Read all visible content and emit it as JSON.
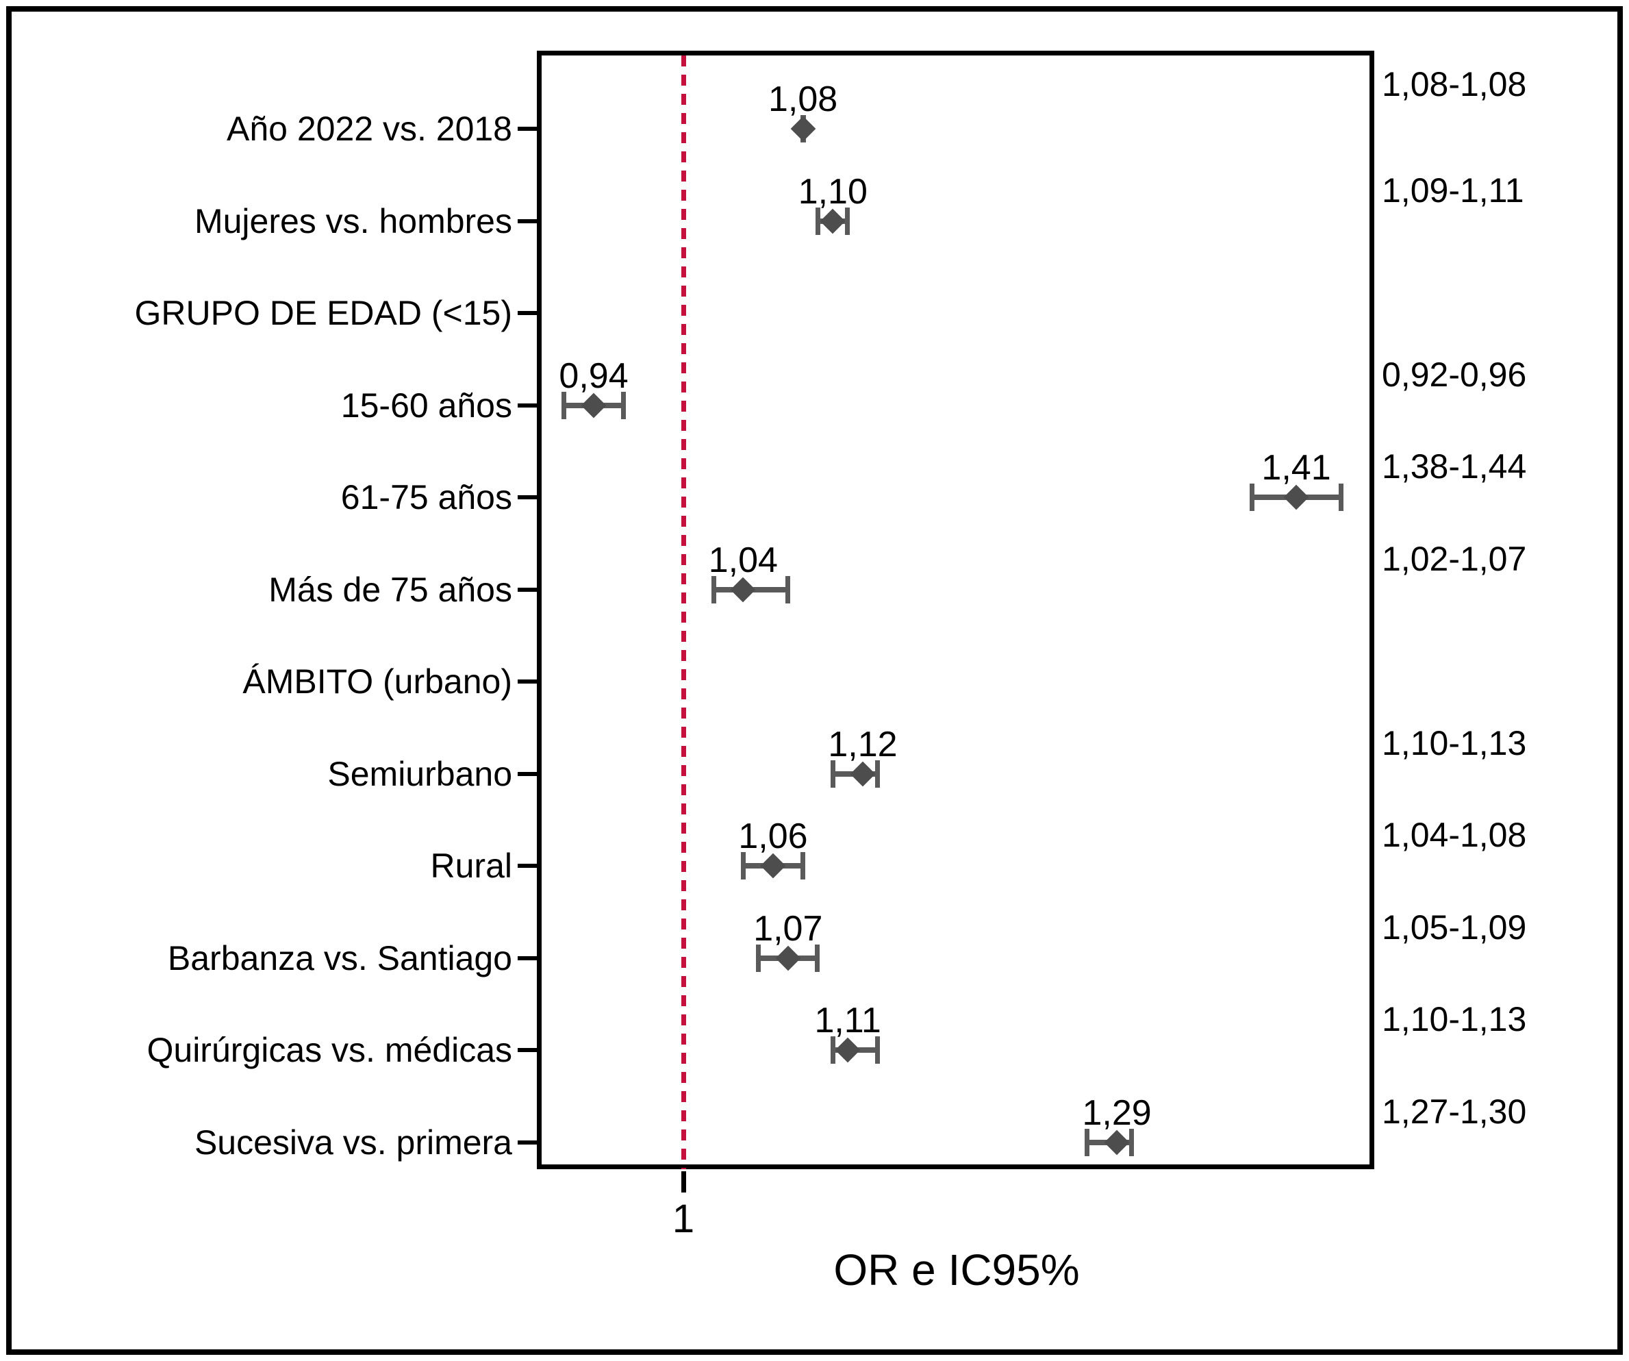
{
  "figure": {
    "background_color": "#ffffff",
    "border_color": "#000000"
  },
  "chart_data": {
    "type": "scatter",
    "subtype": "forest-plot",
    "title": "",
    "xlabel": "OR e IC95%",
    "ylabel": "",
    "xlim": [
      0.9,
      1.46
    ],
    "x_tick_label": "1",
    "x_tick_value": 1,
    "grid": false,
    "legend": false,
    "reference_line_x": 1,
    "reference_line_color": "#c50f3c",
    "marker_color": "#4d4d4d",
    "error_bar_color": "#5a5a5a",
    "rows": [
      {
        "category": "Año 2022 vs. 2018",
        "or": 1.08,
        "ci_low": 1.08,
        "ci_high": 1.08,
        "or_label": "1,08",
        "ci_label": "1,08-1,08"
      },
      {
        "category": "Mujeres vs. hombres",
        "or": 1.1,
        "ci_low": 1.09,
        "ci_high": 1.11,
        "or_label": "1,10",
        "ci_label": "1,09-1,11"
      },
      {
        "category": "GRUPO DE EDAD (<15)",
        "or": null,
        "ci_low": null,
        "ci_high": null,
        "or_label": "",
        "ci_label": ""
      },
      {
        "category": "15-60 años",
        "or": 0.94,
        "ci_low": 0.92,
        "ci_high": 0.96,
        "or_label": "0,94",
        "ci_label": "0,92-0,96"
      },
      {
        "category": "61-75 años",
        "or": 1.41,
        "ci_low": 1.38,
        "ci_high": 1.44,
        "or_label": "1,41",
        "ci_label": "1,38-1,44"
      },
      {
        "category": "Más de 75 años",
        "or": 1.04,
        "ci_low": 1.02,
        "ci_high": 1.07,
        "or_label": "1,04",
        "ci_label": "1,02-1,07"
      },
      {
        "category": "ÁMBITO (urbano)",
        "or": null,
        "ci_low": null,
        "ci_high": null,
        "or_label": "",
        "ci_label": ""
      },
      {
        "category": "Semiurbano",
        "or": 1.12,
        "ci_low": 1.1,
        "ci_high": 1.13,
        "or_label": "1,12",
        "ci_label": "1,10-1,13"
      },
      {
        "category": "Rural",
        "or": 1.06,
        "ci_low": 1.04,
        "ci_high": 1.08,
        "or_label": "1,06",
        "ci_label": "1,04-1,08"
      },
      {
        "category": "Barbanza vs. Santiago",
        "or": 1.07,
        "ci_low": 1.05,
        "ci_high": 1.09,
        "or_label": "1,07",
        "ci_label": "1,05-1,09"
      },
      {
        "category": "Quirúrgicas vs. médicas",
        "or": 1.11,
        "ci_low": 1.1,
        "ci_high": 1.13,
        "or_label": "1,11",
        "ci_label": "1,10-1,13"
      },
      {
        "category": "Sucesiva vs. primera",
        "or": 1.29,
        "ci_low": 1.27,
        "ci_high": 1.3,
        "or_label": "1,29",
        "ci_label": "1,27-1,30"
      }
    ]
  }
}
